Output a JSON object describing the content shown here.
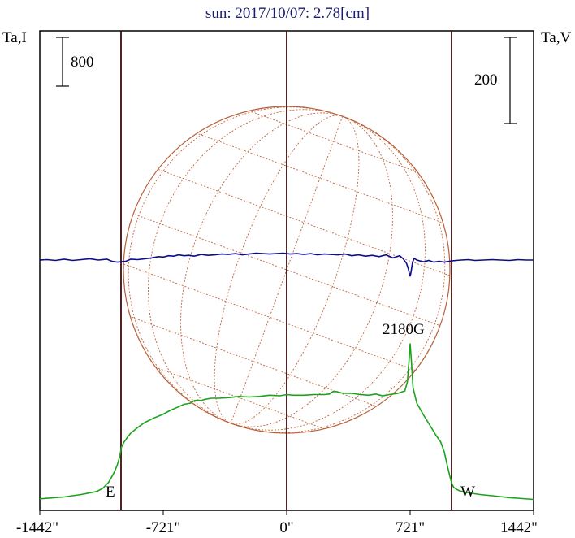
{
  "chart_data": {
    "type": "line",
    "title": "sun: 2017/10/07: 2.78[cm]",
    "left_axis_label": "Ta,I",
    "right_axis_label": "Ta,V",
    "scale_bar_left_label": "800",
    "scale_bar_right_label": "200",
    "x_tick_labels": [
      "-1442\"",
      "-721\"",
      "0\"",
      "721\"",
      "1442\""
    ],
    "x_ticks": [
      -1442,
      -721,
      0,
      721,
      1442
    ],
    "xlim": [
      -1442,
      1442
    ],
    "limb_positions": [
      -965,
      965
    ],
    "limb_labels": [
      "E",
      "W"
    ],
    "annotations": [
      {
        "text": "2180G",
        "x": 721
      }
    ],
    "series": [
      {
        "name": "Ta,I",
        "color": "#1aa31a",
        "x": [
          -1442,
          -1300,
          -1200,
          -1110,
          -1075,
          -1040,
          -1010,
          -990,
          -975,
          -965,
          -950,
          -930,
          -910,
          -870,
          -830,
          -780,
          -720,
          -680,
          -640,
          -600,
          -560,
          -540,
          -520,
          -500,
          -480,
          -440,
          -400,
          -340,
          -280,
          -220,
          -160,
          -100,
          -40,
          0,
          40,
          100,
          160,
          220,
          250,
          270,
          290,
          330,
          380,
          430,
          480,
          520,
          560,
          600,
          650,
          690,
          705,
          715,
          721,
          728,
          738,
          760,
          800,
          840,
          870,
          900,
          920,
          940,
          955,
          965,
          975,
          990,
          1010,
          1040,
          1080,
          1130,
          1200,
          1300,
          1442
        ],
        "y": [
          0.03,
          0.06,
          0.1,
          0.15,
          0.2,
          0.3,
          0.45,
          0.58,
          0.73,
          0.88,
          0.96,
          1.04,
          1.11,
          1.2,
          1.28,
          1.35,
          1.42,
          1.48,
          1.53,
          1.58,
          1.6,
          1.64,
          1.65,
          1.64,
          1.66,
          1.68,
          1.68,
          1.69,
          1.71,
          1.7,
          1.71,
          1.73,
          1.72,
          1.74,
          1.73,
          1.73,
          1.74,
          1.74,
          1.75,
          1.79,
          1.79,
          1.76,
          1.76,
          1.74,
          1.73,
          1.75,
          1.72,
          1.74,
          1.76,
          1.8,
          1.95,
          2.3,
          2.58,
          2.3,
          1.85,
          1.6,
          1.4,
          1.22,
          1.08,
          0.96,
          0.8,
          0.55,
          0.38,
          0.28,
          0.22,
          0.19,
          0.16,
          0.14,
          0.12,
          0.1,
          0.08,
          0.05,
          0.02
        ]
      },
      {
        "name": "Ta,V",
        "color": "#0b0b8c",
        "x": [
          -1442,
          -1400,
          -1350,
          -1300,
          -1250,
          -1200,
          -1150,
          -1100,
          -1050,
          -1020,
          -990,
          -965,
          -940,
          -910,
          -870,
          -830,
          -790,
          -750,
          -720,
          -690,
          -660,
          -630,
          -600,
          -570,
          -540,
          -500,
          -460,
          -420,
          -380,
          -340,
          -300,
          -260,
          -220,
          -180,
          -140,
          -100,
          -60,
          -20,
          20,
          60,
          100,
          140,
          180,
          220,
          260,
          300,
          340,
          380,
          420,
          460,
          500,
          540,
          580,
          620,
          660,
          680,
          700,
          710,
          718,
          721,
          726,
          735,
          745,
          760,
          780,
          800,
          830,
          860,
          890,
          920,
          950,
          965,
          990,
          1020,
          1060,
          1100,
          1150,
          1200,
          1250,
          1300,
          1350,
          1400,
          1442
        ],
        "y": [
          0.0,
          0.01,
          -0.01,
          0.02,
          -0.01,
          0.01,
          0.03,
          0.0,
          0.02,
          -0.03,
          -0.05,
          -0.04,
          -0.03,
          0.02,
          0.01,
          0.03,
          0.05,
          0.08,
          0.07,
          0.1,
          0.09,
          0.12,
          0.1,
          0.11,
          0.09,
          0.13,
          0.11,
          0.12,
          0.14,
          0.13,
          0.15,
          0.12,
          0.14,
          0.16,
          0.15,
          0.14,
          0.15,
          0.16,
          0.14,
          0.15,
          0.13,
          0.15,
          0.12,
          0.14,
          0.13,
          0.12,
          0.14,
          0.1,
          0.12,
          0.09,
          0.11,
          0.08,
          0.12,
          0.05,
          0.1,
          0.03,
          -0.08,
          -0.2,
          -0.34,
          -0.38,
          -0.28,
          -0.05,
          0.04,
          0.0,
          -0.02,
          -0.04,
          -0.01,
          -0.05,
          -0.03,
          -0.05,
          -0.03,
          -0.02,
          -0.01,
          0.0,
          0.01,
          -0.01,
          0.0,
          0.01,
          0.0,
          -0.01,
          0.01,
          0.0,
          0.0
        ]
      }
    ]
  }
}
